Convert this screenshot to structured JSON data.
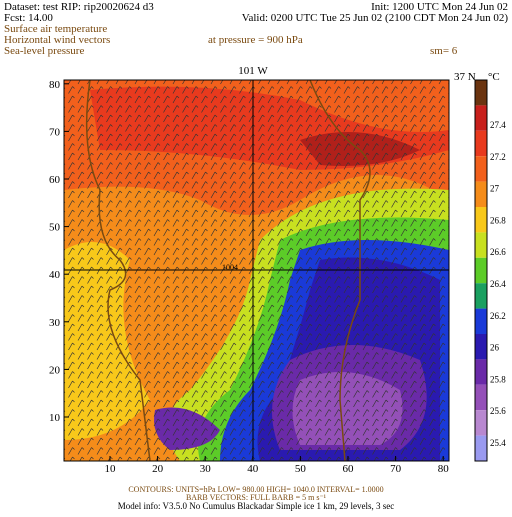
{
  "header": {
    "dataset": "Dataset: test   RIP: rip20020624  d3",
    "init": "Init: 1200 UTC Mon 24 Jun 02",
    "fcst": "Fcst:     14.00",
    "valid": "Valid: 0200 UTC Tue 25 Jun 02 (2100 CDT Mon 24 Jun 02)",
    "fields": [
      "Surface air temperature",
      "Horizontal wind vectors",
      "Sea-level pressure"
    ],
    "pressure": "at pressure =  900 hPa",
    "smooth": "sm= 6"
  },
  "map": {
    "lon_label": "101 W",
    "lat_label": "37 N",
    "unit": "°C",
    "contour_label": "1004",
    "xticks": [
      10,
      20,
      30,
      40,
      50,
      60,
      70,
      80
    ],
    "yticks": [
      10,
      20,
      30,
      40,
      50,
      60,
      70,
      80
    ]
  },
  "colorbar": {
    "labels": [
      "27.4",
      "27.2",
      "27",
      "26.8",
      "26.6",
      "26.4",
      "26.2",
      "26",
      "25.8",
      "25.6",
      "25.4"
    ],
    "colors": [
      "#6b3410",
      "#c8201c",
      "#e83a1e",
      "#f2601c",
      "#f58c1a",
      "#f8c81a",
      "#c8e020",
      "#5ccc28",
      "#1aa060",
      "#1a3ad8",
      "#2a1ab0",
      "#6a2aa8",
      "#9450b8",
      "#b888d0",
      "#9a9af0"
    ]
  },
  "footer": {
    "contours": "CONTOURS:  UNITS=hPa  LOW=  980.00    HIGH=  1040.0    INTERVAL=    1.0000",
    "barbs": "BARB VECTORS:  FULL BARB = 5 m s⁻¹",
    "model": "Model info: V3.5.0  No Cumulus  Blackadar   Simple ice    1 km,   29 levels,     3 sec"
  }
}
